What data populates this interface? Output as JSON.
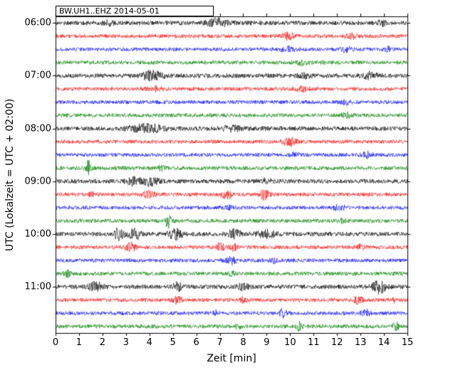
{
  "chart_data": {
    "type": "line",
    "subtype": "helicorder-dayplot",
    "title": "BW.UH1..EHZ 2014-05-01",
    "xlabel": "Zeit  [min]",
    "ylabel": "UTC (Lokalzeit = UTC + 02:00)",
    "x_range": [
      0,
      15
    ],
    "minutes_per_row": 15,
    "grid": false,
    "legend": "none",
    "x_ticks": [
      "0",
      "1",
      "2",
      "3",
      "4",
      "5",
      "6",
      "7",
      "8",
      "9",
      "10",
      "11",
      "12",
      "13",
      "14",
      "15"
    ],
    "y_ticks": [
      {
        "label": "06:00",
        "row": 0
      },
      {
        "label": "07:00",
        "row": 4
      },
      {
        "label": "08:00",
        "row": 8
      },
      {
        "label": "09:00",
        "row": 12
      },
      {
        "label": "10:00",
        "row": 16
      },
      {
        "label": "11:00",
        "row": 20
      }
    ],
    "trace_color_cycle": [
      "#000000",
      "#ff0000",
      "#0000ff",
      "#008000"
    ],
    "rows": [
      {
        "time": "06:00",
        "color": "#000000",
        "base": 3.0,
        "events": [
          {
            "t": 6.9,
            "a": 1.8,
            "w": 0.3
          },
          {
            "t": 2.3,
            "a": 0.8,
            "w": 0.15
          },
          {
            "t": 13.9,
            "a": 1.0,
            "w": 0.12
          }
        ]
      },
      {
        "time": "06:15",
        "color": "#ff0000",
        "base": 2.6,
        "events": [
          {
            "t": 9.9,
            "a": 1.6,
            "w": 0.2
          },
          {
            "t": 12.6,
            "a": 1.1,
            "w": 0.15
          }
        ]
      },
      {
        "time": "06:30",
        "color": "#0000ff",
        "base": 2.6,
        "events": [
          {
            "t": 9.9,
            "a": 1.4,
            "w": 0.2
          },
          {
            "t": 12.4,
            "a": 1.3,
            "w": 0.15
          },
          {
            "t": 14.2,
            "a": 1.1,
            "w": 0.1
          }
        ]
      },
      {
        "time": "06:45",
        "color": "#008000",
        "base": 2.7,
        "events": [
          {
            "t": 10.5,
            "a": 0.9,
            "w": 0.2
          }
        ]
      },
      {
        "time": "07:00",
        "color": "#000000",
        "base": 3.0,
        "events": [
          {
            "t": 4.1,
            "a": 2.0,
            "w": 0.3
          },
          {
            "t": 10.6,
            "a": 1.0,
            "w": 0.2
          },
          {
            "t": 13.4,
            "a": 1.4,
            "w": 0.25
          }
        ]
      },
      {
        "time": "07:15",
        "color": "#ff0000",
        "base": 2.6,
        "events": [
          {
            "t": 4.2,
            "a": 1.0,
            "w": 0.2
          },
          {
            "t": 10.5,
            "a": 1.0,
            "w": 0.2
          }
        ]
      },
      {
        "time": "07:30",
        "color": "#0000ff",
        "base": 2.6,
        "events": [
          {
            "t": 12.4,
            "a": 0.9,
            "w": 0.15
          }
        ]
      },
      {
        "time": "07:45",
        "color": "#008000",
        "base": 2.7,
        "events": [
          {
            "t": 12.4,
            "a": 1.0,
            "w": 0.15
          }
        ]
      },
      {
        "time": "08:00",
        "color": "#000000",
        "base": 3.0,
        "events": [
          {
            "t": 3.9,
            "a": 1.8,
            "w": 0.5
          },
          {
            "t": 7.5,
            "a": 1.0,
            "w": 0.3
          }
        ]
      },
      {
        "time": "08:15",
        "color": "#ff0000",
        "base": 2.6,
        "events": [
          {
            "t": 10.0,
            "a": 1.8,
            "w": 0.2
          }
        ]
      },
      {
        "time": "08:30",
        "color": "#0000ff",
        "base": 2.6,
        "events": [
          {
            "t": 10.2,
            "a": 1.0,
            "w": 0.15
          },
          {
            "t": 13.3,
            "a": 1.4,
            "w": 0.15
          }
        ]
      },
      {
        "time": "08:45",
        "color": "#008000",
        "base": 2.7,
        "events": [
          {
            "t": 1.4,
            "a": 3.8,
            "w": 0.08
          },
          {
            "t": 4.5,
            "a": 1.1,
            "w": 0.1
          }
        ]
      },
      {
        "time": "09:00",
        "color": "#000000",
        "base": 3.0,
        "events": [
          {
            "t": 3.3,
            "a": 1.5,
            "w": 0.2
          },
          {
            "t": 4.0,
            "a": 1.7,
            "w": 0.25
          },
          {
            "t": 9.0,
            "a": 0.9,
            "w": 0.2
          }
        ]
      },
      {
        "time": "09:15",
        "color": "#ff0000",
        "base": 2.6,
        "events": [
          {
            "t": 1.5,
            "a": 1.1,
            "w": 0.1
          },
          {
            "t": 4.0,
            "a": 1.6,
            "w": 0.2
          },
          {
            "t": 7.3,
            "a": 2.0,
            "w": 0.15
          },
          {
            "t": 8.9,
            "a": 2.4,
            "w": 0.15
          }
        ]
      },
      {
        "time": "09:30",
        "color": "#0000ff",
        "base": 2.6,
        "events": [
          {
            "t": 7.4,
            "a": 0.9,
            "w": 0.1
          },
          {
            "t": 12.1,
            "a": 1.1,
            "w": 0.2
          }
        ]
      },
      {
        "time": "09:45",
        "color": "#008000",
        "base": 2.7,
        "events": [
          {
            "t": 4.8,
            "a": 3.2,
            "w": 0.08
          },
          {
            "t": 12.2,
            "a": 0.9,
            "w": 0.1
          }
        ]
      },
      {
        "time": "10:00",
        "color": "#000000",
        "base": 3.0,
        "events": [
          {
            "t": 2.7,
            "a": 2.6,
            "w": 0.15
          },
          {
            "t": 3.4,
            "a": 2.0,
            "w": 0.2
          },
          {
            "t": 5.1,
            "a": 2.3,
            "w": 0.2
          },
          {
            "t": 7.6,
            "a": 2.0,
            "w": 0.2
          },
          {
            "t": 9.0,
            "a": 2.0,
            "w": 0.25
          }
        ]
      },
      {
        "time": "10:15",
        "color": "#ff0000",
        "base": 2.6,
        "events": [
          {
            "t": 3.2,
            "a": 2.4,
            "w": 0.15
          },
          {
            "t": 7.0,
            "a": 2.0,
            "w": 0.15
          },
          {
            "t": 7.6,
            "a": 1.6,
            "w": 0.1
          },
          {
            "t": 13.0,
            "a": 1.1,
            "w": 0.1
          }
        ]
      },
      {
        "time": "10:30",
        "color": "#0000ff",
        "base": 2.6,
        "events": [
          {
            "t": 7.5,
            "a": 1.6,
            "w": 0.15
          },
          {
            "t": 9.3,
            "a": 1.1,
            "w": 0.1
          }
        ]
      },
      {
        "time": "10:45",
        "color": "#008000",
        "base": 2.7,
        "events": [
          {
            "t": 0.5,
            "a": 1.6,
            "w": 0.1
          },
          {
            "t": 7.5,
            "a": 0.9,
            "w": 0.1
          }
        ]
      },
      {
        "time": "11:00",
        "color": "#000000",
        "base": 3.0,
        "events": [
          {
            "t": 1.7,
            "a": 2.0,
            "w": 0.2
          },
          {
            "t": 5.2,
            "a": 1.6,
            "w": 0.15
          },
          {
            "t": 8.0,
            "a": 1.4,
            "w": 0.15
          },
          {
            "t": 13.8,
            "a": 2.8,
            "w": 0.2
          }
        ]
      },
      {
        "time": "11:15",
        "color": "#ff0000",
        "base": 2.6,
        "events": [
          {
            "t": 5.2,
            "a": 2.0,
            "w": 0.12
          },
          {
            "t": 8.0,
            "a": 1.4,
            "w": 0.12
          },
          {
            "t": 12.9,
            "a": 2.0,
            "w": 0.12
          },
          {
            "t": 14.4,
            "a": 1.1,
            "w": 0.1
          }
        ]
      },
      {
        "time": "11:30",
        "color": "#0000ff",
        "base": 2.6,
        "events": [
          {
            "t": 6.8,
            "a": 1.1,
            "w": 0.1
          },
          {
            "t": 9.7,
            "a": 2.0,
            "w": 0.1
          },
          {
            "t": 13.2,
            "a": 1.8,
            "w": 0.12
          }
        ]
      },
      {
        "time": "11:45",
        "color": "#008000",
        "base": 2.7,
        "events": [
          {
            "t": 7.8,
            "a": 1.1,
            "w": 0.1
          },
          {
            "t": 10.4,
            "a": 2.6,
            "w": 0.08
          },
          {
            "t": 14.5,
            "a": 2.2,
            "w": 0.08
          }
        ]
      }
    ]
  }
}
